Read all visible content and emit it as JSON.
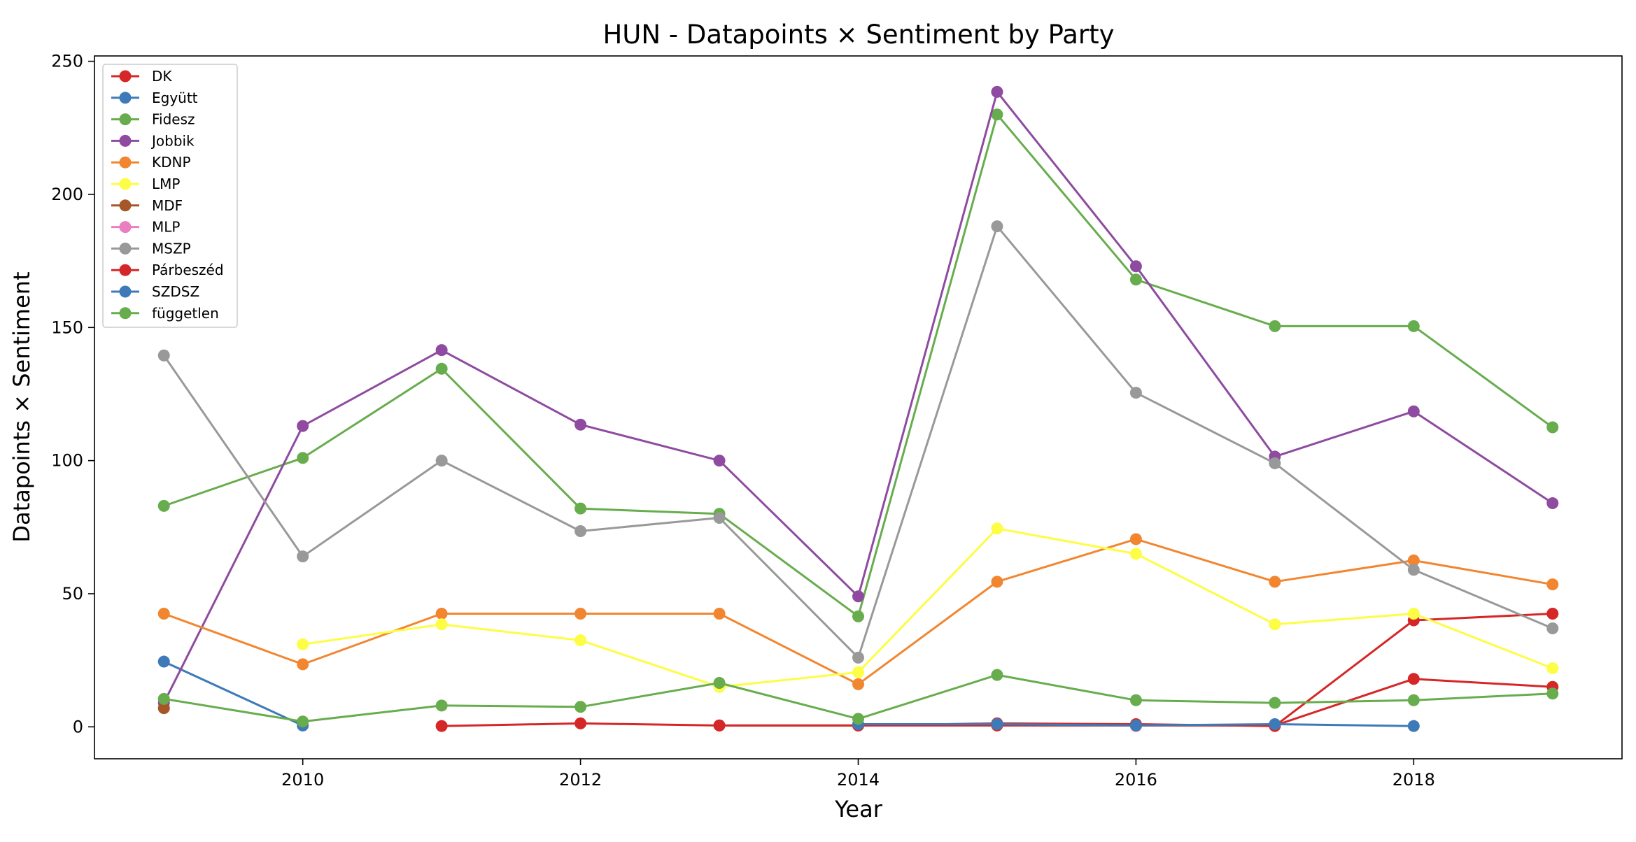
{
  "chart_data": {
    "type": "line",
    "title": "HUN - Datapoints × Sentiment by Party",
    "xlabel": "Year",
    "ylabel": "Datapoints × Sentiment",
    "xlim": [
      2008.5,
      2019.5
    ],
    "ylim": [
      -12,
      252
    ],
    "x_ticks": [
      2010,
      2012,
      2014,
      2016,
      2018
    ],
    "y_ticks": [
      0,
      50,
      100,
      150,
      200,
      250
    ],
    "grid": false,
    "legend_position": "upper-left",
    "series": [
      {
        "name": "DK",
        "color": "#d62728",
        "x": [
          2011,
          2012,
          2013,
          2014,
          2015,
          2016,
          2017,
          2018,
          2019
        ],
        "y": [
          0.3,
          1.3,
          0.5,
          0.5,
          1.3,
          1,
          0.3,
          40,
          42.5
        ]
      },
      {
        "name": "Együtt",
        "color": "#3f7ab8",
        "x": [
          2009,
          2010
        ],
        "y": [
          24.5,
          0.5
        ]
      },
      {
        "name": "Fidesz",
        "color": "#67ad4d",
        "x": [
          2009,
          2010,
          2011,
          2012,
          2013,
          2014,
          2015,
          2016,
          2017,
          2018,
          2019
        ],
        "y": [
          83,
          101,
          134.5,
          82,
          80,
          41.5,
          230,
          168,
          150.5,
          150.5,
          112.5
        ]
      },
      {
        "name": "Jobbik",
        "color": "#8e4ba0",
        "x": [
          2009,
          2010,
          2011,
          2012,
          2013,
          2014,
          2015,
          2016,
          2017,
          2018,
          2019
        ],
        "y": [
          9,
          113,
          141.5,
          113.5,
          100,
          49,
          238.5,
          173,
          101.5,
          118.5,
          84
        ]
      },
      {
        "name": "KDNP",
        "color": "#f28630",
        "x": [
          2009,
          2010,
          2011,
          2012,
          2013,
          2014,
          2015,
          2016,
          2017,
          2018,
          2019
        ],
        "y": [
          42.5,
          23.5,
          42.5,
          42.5,
          42.5,
          16,
          54.5,
          70.5,
          54.5,
          62.5,
          53.5
        ]
      },
      {
        "name": "LMP",
        "color": "#fdfd45",
        "x": [
          2010,
          2011,
          2012,
          2013,
          2014,
          2015,
          2016,
          2017,
          2018,
          2019
        ],
        "y": [
          31,
          38.5,
          32.5,
          15,
          20.5,
          74.5,
          65,
          38.5,
          42.5,
          22
        ]
      },
      {
        "name": "MDF",
        "color": "#a65628",
        "x": [
          2009
        ],
        "y": [
          7
        ]
      },
      {
        "name": "MLP",
        "color": "#e97fc1",
        "x": [
          2016
        ],
        "y": [
          0.3
        ]
      },
      {
        "name": "MSZP",
        "color": "#999999",
        "x": [
          2009,
          2010,
          2011,
          2012,
          2013,
          2014,
          2015,
          2016,
          2017,
          2018,
          2019
        ],
        "y": [
          139.5,
          64,
          100,
          73.5,
          78.5,
          26,
          188,
          125.5,
          99,
          59,
          37
        ]
      },
      {
        "name": "Párbeszéd",
        "color": "#d62728",
        "x": [
          2013,
          2014,
          2015,
          2016,
          2017,
          2018,
          2019
        ],
        "y": [
          0.5,
          0.5,
          0.5,
          0.5,
          0.5,
          18,
          15
        ]
      },
      {
        "name": "SZDSZ",
        "color": "#3f7ab8",
        "x": [
          2014,
          2015,
          2016,
          2017,
          2018
        ],
        "y": [
          1,
          1,
          0.5,
          1,
          0.3
        ]
      },
      {
        "name": "független",
        "color": "#67ad4d",
        "x": [
          2009,
          2010,
          2011,
          2012,
          2013,
          2014,
          2015,
          2016,
          2017,
          2018,
          2019
        ],
        "y": [
          10.5,
          2,
          8,
          7.5,
          16.5,
          3,
          19.5,
          10,
          9,
          10,
          12.5
        ]
      }
    ]
  }
}
